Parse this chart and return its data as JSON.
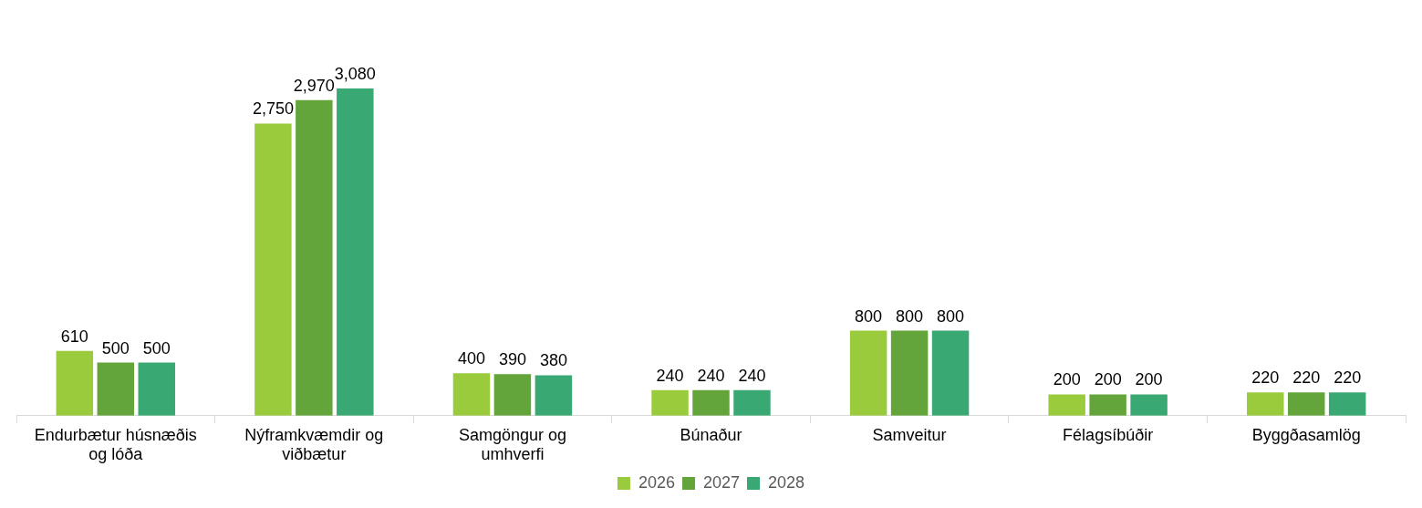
{
  "chart_data": {
    "type": "bar",
    "categories": [
      "Endurbætur húsnæðis og lóða",
      "Nýframkvæmdir og viðbætur",
      "Samgöngur og umhverfi",
      "Búnaður",
      "Samveitur",
      "Félagsíbúðir",
      "Byggðasamlög"
    ],
    "series": [
      {
        "name": "2026",
        "color": "#9acb3c",
        "values": [
          610,
          2750,
          400,
          240,
          800,
          200,
          220
        ],
        "value_labels": [
          "610",
          "2,750",
          "400",
          "240",
          "800",
          "200",
          "220"
        ]
      },
      {
        "name": "2027",
        "color": "#63a53a",
        "values": [
          500,
          2970,
          390,
          240,
          800,
          200,
          220
        ],
        "value_labels": [
          "500",
          "2,970",
          "390",
          "240",
          "800",
          "200",
          "220"
        ]
      },
      {
        "name": "2028",
        "color": "#3aa872",
        "values": [
          500,
          3080,
          380,
          240,
          800,
          200,
          220
        ],
        "value_labels": [
          "500",
          "3,080",
          "380",
          "240",
          "800",
          "200",
          "220"
        ]
      }
    ],
    "legend": "bottom",
    "grid": false
  }
}
